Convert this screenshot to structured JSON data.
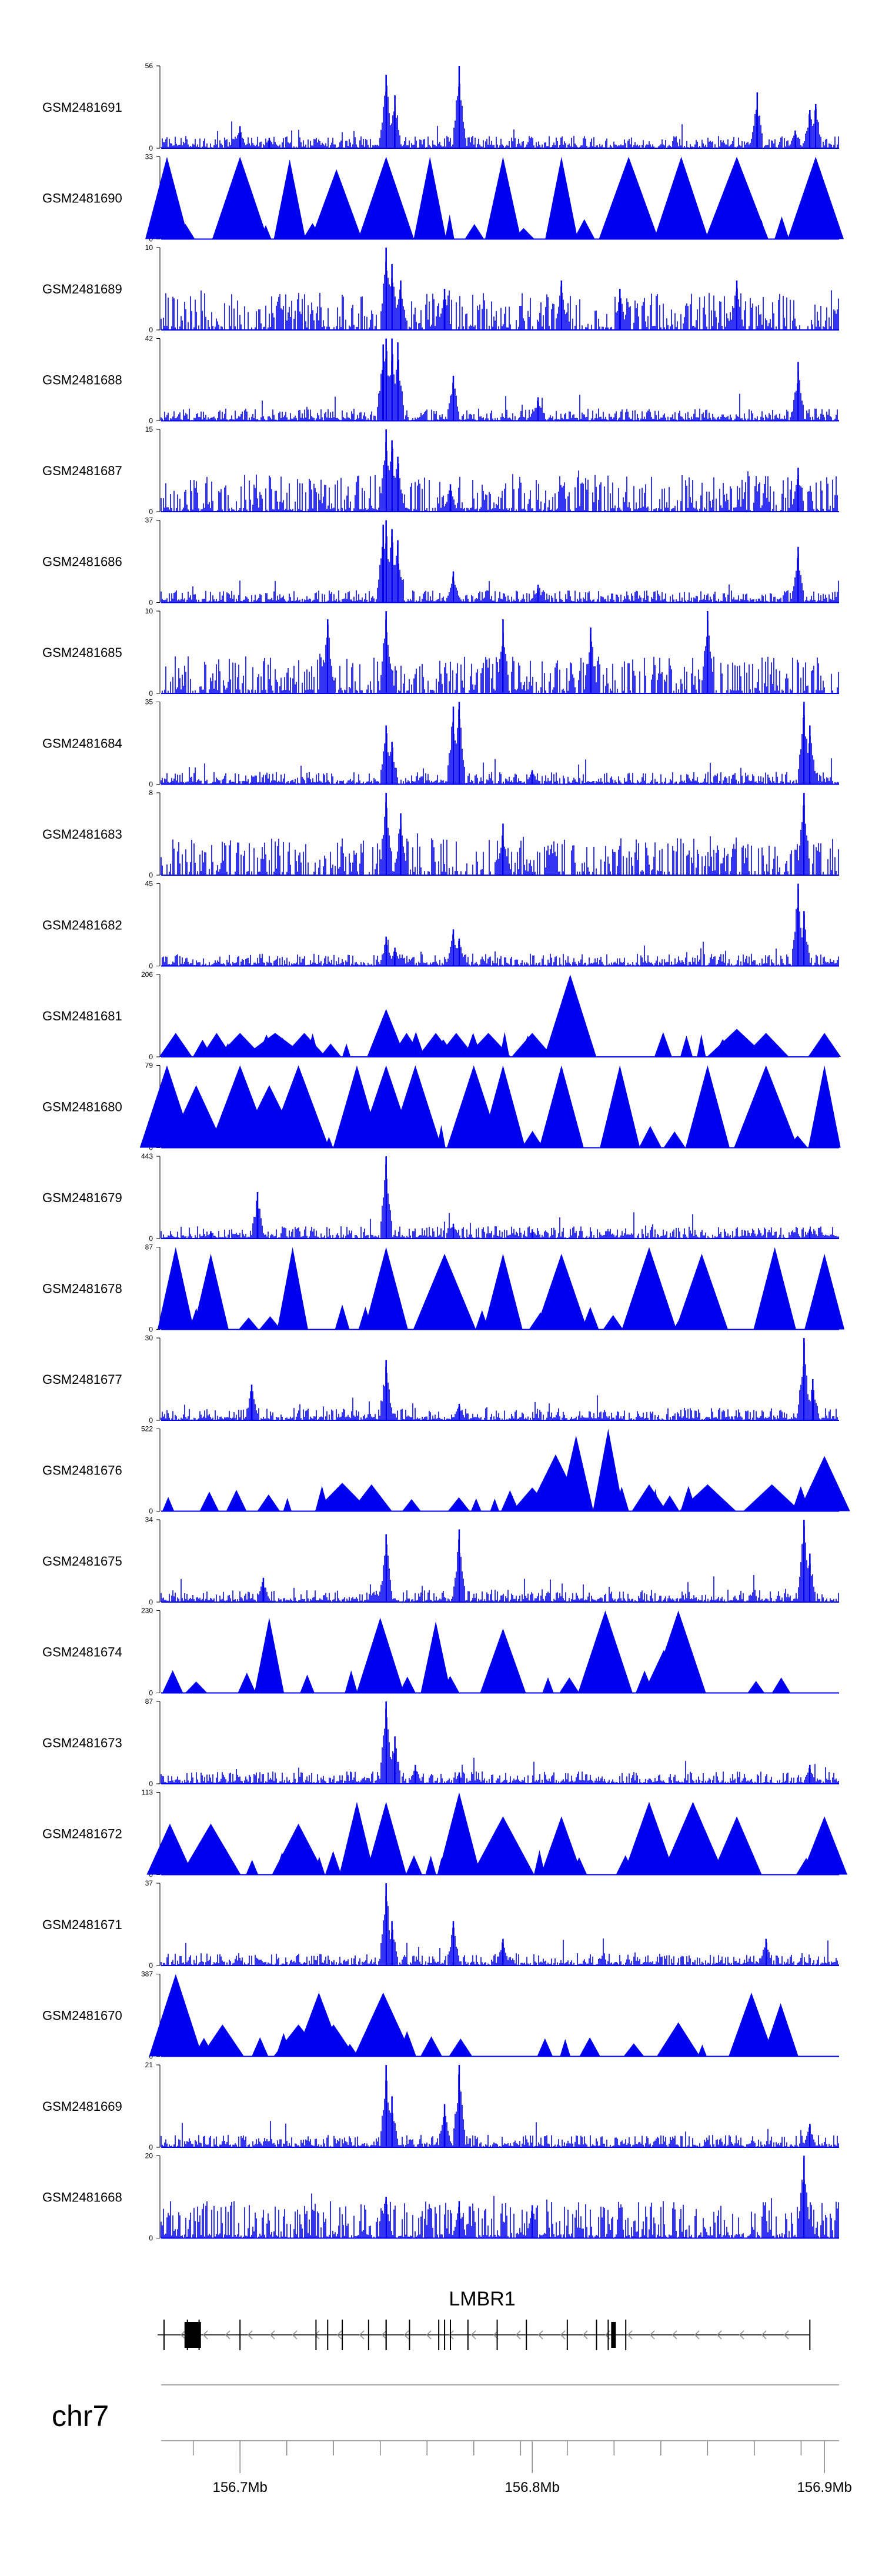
{
  "chart_data": {
    "type": "area",
    "title": "",
    "chromosome": "chr7",
    "genomic_range_mb": [
      156.673,
      156.905
    ],
    "genomic_axis": {
      "major_ticks": [
        156.7,
        156.8,
        156.9
      ],
      "major_labels": [
        "156.7Mb",
        "156.8Mb",
        "156.9Mb"
      ],
      "minor_ticks": [
        156.684,
        156.7,
        156.716,
        156.732,
        156.748,
        156.764,
        156.78,
        156.796,
        156.812,
        156.828,
        156.844,
        156.86,
        156.876,
        156.892
      ]
    },
    "gene": {
      "name": "LMBR1",
      "strand": "-",
      "start_mb": 156.673,
      "end_mb": 156.895,
      "exons_mb": [
        156.674,
        156.682,
        156.686,
        156.7,
        156.726,
        156.73,
        156.735,
        156.744,
        156.75,
        156.75,
        156.758,
        156.768,
        156.77,
        156.772,
        156.778,
        156.788,
        156.798,
        156.812,
        156.822,
        156.826,
        156.832,
        156.895
      ]
    },
    "series": [
      {
        "name": "GSM2481691",
        "ymax": 56,
        "style": "spiky",
        "peaks": [
          [
            156.75,
            50
          ],
          [
            156.753,
            36
          ],
          [
            156.775,
            56
          ],
          [
            156.7,
            15
          ],
          [
            156.71,
            7
          ],
          [
            156.877,
            38
          ],
          [
            156.895,
            26
          ],
          [
            156.897,
            30
          ],
          [
            156.89,
            12
          ]
        ]
      },
      {
        "name": "GSM2481690",
        "ymax": 33,
        "style": "triangles",
        "peaks": [
          [
            156.675,
            33
          ],
          [
            156.7,
            33
          ],
          [
            156.717,
            32
          ],
          [
            156.733,
            28
          ],
          [
            156.75,
            33
          ],
          [
            156.765,
            33
          ],
          [
            156.79,
            33
          ],
          [
            156.81,
            33
          ],
          [
            156.833,
            33
          ],
          [
            156.851,
            33
          ],
          [
            156.87,
            33
          ],
          [
            156.897,
            33
          ]
        ]
      },
      {
        "name": "GSM2481689",
        "ymax": 10,
        "style": "dense",
        "peaks": [
          [
            156.75,
            10
          ],
          [
            156.752,
            8
          ],
          [
            156.755,
            6
          ],
          [
            156.77,
            5
          ],
          [
            156.81,
            6
          ],
          [
            156.83,
            5
          ],
          [
            156.87,
            6
          ]
        ]
      },
      {
        "name": "GSM2481688",
        "ymax": 42,
        "style": "spiky",
        "peaks": [
          [
            156.749,
            39
          ],
          [
            156.75,
            42
          ],
          [
            156.752,
            42
          ],
          [
            156.754,
            40
          ],
          [
            156.773,
            23
          ],
          [
            156.802,
            12
          ],
          [
            156.891,
            30
          ]
        ]
      },
      {
        "name": "GSM2481687",
        "ymax": 15,
        "style": "dense",
        "peaks": [
          [
            156.75,
            15
          ],
          [
            156.752,
            13
          ],
          [
            156.754,
            10
          ],
          [
            156.772,
            5
          ],
          [
            156.891,
            8
          ]
        ]
      },
      {
        "name": "GSM2481686",
        "ymax": 37,
        "style": "spiky",
        "peaks": [
          [
            156.749,
            35
          ],
          [
            156.75,
            37
          ],
          [
            156.752,
            33
          ],
          [
            156.754,
            28
          ],
          [
            156.773,
            14
          ],
          [
            156.802,
            8
          ],
          [
            156.891,
            25
          ]
        ]
      },
      {
        "name": "GSM2481685",
        "ymax": 10,
        "style": "dense",
        "peaks": [
          [
            156.73,
            9
          ],
          [
            156.75,
            10
          ],
          [
            156.79,
            9
          ],
          [
            156.82,
            8
          ],
          [
            156.86,
            10
          ]
        ]
      },
      {
        "name": "GSM2481684",
        "ymax": 35,
        "style": "spiky",
        "peaks": [
          [
            156.75,
            25
          ],
          [
            156.752,
            18
          ],
          [
            156.773,
            33
          ],
          [
            156.775,
            35
          ],
          [
            156.8,
            6
          ],
          [
            156.893,
            35
          ],
          [
            156.895,
            25
          ]
        ]
      },
      {
        "name": "GSM2481683",
        "ymax": 8,
        "style": "dense",
        "peaks": [
          [
            156.75,
            8
          ],
          [
            156.755,
            6
          ],
          [
            156.79,
            5
          ],
          [
            156.893,
            8
          ]
        ]
      },
      {
        "name": "GSM2481682",
        "ymax": 45,
        "style": "spiky",
        "peaks": [
          [
            156.75,
            16
          ],
          [
            156.753,
            10
          ],
          [
            156.773,
            20
          ],
          [
            156.775,
            15
          ],
          [
            156.891,
            45
          ],
          [
            156.893,
            30
          ]
        ]
      },
      {
        "name": "GSM2481681",
        "ymax": 206,
        "style": "triangles",
        "peaks": [
          [
            156.678,
            60
          ],
          [
            156.692,
            60
          ],
          [
            156.7,
            60
          ],
          [
            156.712,
            60
          ],
          [
            156.722,
            60
          ],
          [
            156.75,
            120
          ],
          [
            156.757,
            60
          ],
          [
            156.767,
            60
          ],
          [
            156.774,
            60
          ],
          [
            156.785,
            60
          ],
          [
            156.8,
            60
          ],
          [
            156.813,
            206
          ],
          [
            156.87,
            70
          ],
          [
            156.88,
            60
          ],
          [
            156.9,
            60
          ]
        ]
      },
      {
        "name": "GSM2481680",
        "ymax": 79,
        "style": "triangles",
        "peaks": [
          [
            156.675,
            79
          ],
          [
            156.685,
            60
          ],
          [
            156.7,
            79
          ],
          [
            156.71,
            60
          ],
          [
            156.72,
            79
          ],
          [
            156.74,
            79
          ],
          [
            156.75,
            79
          ],
          [
            156.76,
            79
          ],
          [
            156.78,
            79
          ],
          [
            156.79,
            79
          ],
          [
            156.81,
            79
          ],
          [
            156.83,
            79
          ],
          [
            156.86,
            79
          ],
          [
            156.88,
            79
          ],
          [
            156.9,
            79
          ]
        ]
      },
      {
        "name": "GSM2481679",
        "ymax": 443,
        "style": "spiky",
        "peaks": [
          [
            156.706,
            250
          ],
          [
            156.75,
            443
          ],
          [
            156.773,
            80
          ],
          [
            156.69,
            40
          ],
          [
            156.8,
            50
          ],
          [
            156.895,
            50
          ]
        ]
      },
      {
        "name": "GSM2481678",
        "ymax": 87,
        "style": "triangles",
        "peaks": [
          [
            156.678,
            87
          ],
          [
            156.69,
            80
          ],
          [
            156.718,
            87
          ],
          [
            156.75,
            87
          ],
          [
            156.77,
            80
          ],
          [
            156.79,
            80
          ],
          [
            156.81,
            80
          ],
          [
            156.84,
            87
          ],
          [
            156.858,
            80
          ],
          [
            156.883,
            87
          ],
          [
            156.9,
            80
          ]
        ]
      },
      {
        "name": "GSM2481677",
        "ymax": 30,
        "style": "spiky",
        "peaks": [
          [
            156.75,
            22
          ],
          [
            156.704,
            13
          ],
          [
            156.775,
            6
          ],
          [
            156.893,
            30
          ],
          [
            156.896,
            15
          ]
        ]
      },
      {
        "name": "GSM2481676",
        "ymax": 522,
        "style": "triangles",
        "peaks": [
          [
            156.735,
            180
          ],
          [
            156.745,
            170
          ],
          [
            156.8,
            150
          ],
          [
            156.808,
            360
          ],
          [
            156.815,
            480
          ],
          [
            156.826,
            522
          ],
          [
            156.84,
            170
          ],
          [
            156.86,
            170
          ],
          [
            156.882,
            170
          ],
          [
            156.9,
            350
          ]
        ]
      },
      {
        "name": "GSM2481675",
        "ymax": 34,
        "style": "spiky",
        "peaks": [
          [
            156.75,
            28
          ],
          [
            156.775,
            30
          ],
          [
            156.708,
            10
          ],
          [
            156.893,
            34
          ],
          [
            156.895,
            20
          ]
        ]
      },
      {
        "name": "GSM2481674",
        "ymax": 230,
        "style": "triangles",
        "peaks": [
          [
            156.71,
            210
          ],
          [
            156.748,
            210
          ],
          [
            156.767,
            200
          ],
          [
            156.79,
            180
          ],
          [
            156.825,
            230
          ],
          [
            156.845,
            120
          ],
          [
            156.85,
            230
          ]
        ]
      },
      {
        "name": "GSM2481673",
        "ymax": 87,
        "style": "spiky",
        "peaks": [
          [
            156.75,
            87
          ],
          [
            156.753,
            50
          ],
          [
            156.76,
            20
          ],
          [
            156.775,
            12
          ],
          [
            156.895,
            20
          ]
        ]
      },
      {
        "name": "GSM2481672",
        "ymax": 113,
        "style": "triangles",
        "peaks": [
          [
            156.676,
            70
          ],
          [
            156.69,
            70
          ],
          [
            156.72,
            70
          ],
          [
            156.74,
            100
          ],
          [
            156.75,
            100
          ],
          [
            156.775,
            113
          ],
          [
            156.79,
            80
          ],
          [
            156.81,
            80
          ],
          [
            156.84,
            100
          ],
          [
            156.855,
            100
          ],
          [
            156.87,
            80
          ],
          [
            156.9,
            80
          ]
        ]
      },
      {
        "name": "GSM2481671",
        "ymax": 37,
        "style": "spiky",
        "peaks": [
          [
            156.75,
            37
          ],
          [
            156.752,
            20
          ],
          [
            156.773,
            20
          ],
          [
            156.79,
            12
          ],
          [
            156.88,
            12
          ]
        ]
      },
      {
        "name": "GSM2481670",
        "ymax": 387,
        "style": "triangles",
        "peaks": [
          [
            156.678,
            387
          ],
          [
            156.694,
            150
          ],
          [
            156.72,
            150
          ],
          [
            156.727,
            300
          ],
          [
            156.732,
            150
          ],
          [
            156.749,
            300
          ],
          [
            156.85,
            160
          ],
          [
            156.875,
            300
          ],
          [
            156.885,
            250
          ]
        ]
      },
      {
        "name": "GSM2481669",
        "ymax": 21,
        "style": "spiky",
        "peaks": [
          [
            156.75,
            21
          ],
          [
            156.752,
            13
          ],
          [
            156.77,
            11
          ],
          [
            156.775,
            21
          ],
          [
            156.895,
            6
          ]
        ]
      },
      {
        "name": "GSM2481668",
        "ymax": 20,
        "style": "dense",
        "peaks": [
          [
            156.75,
            10
          ],
          [
            156.775,
            9
          ],
          [
            156.893,
            20
          ],
          [
            156.8,
            8
          ]
        ]
      }
    ]
  },
  "colors": {
    "signal": "#0000ee",
    "signal_light": "#3333ff",
    "axis": "#000000",
    "gene": "#000000",
    "grid": "#888888"
  }
}
